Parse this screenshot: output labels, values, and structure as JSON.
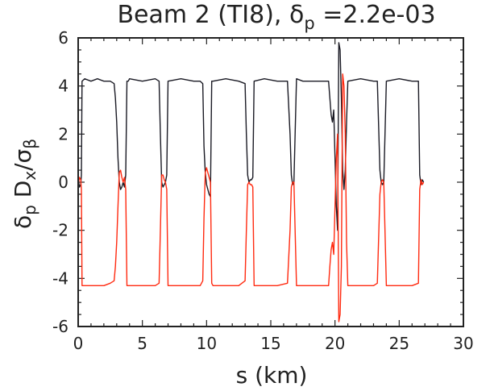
{
  "chart_data": {
    "type": "line",
    "title_main": "Beam 2 (TI8), δ",
    "title_sub": "p",
    "title_value": " =2.2e-03",
    "xlabel": "s (km)",
    "ylabel_parts": [
      "δ",
      "p",
      " D",
      "x",
      "/σ",
      "β"
    ],
    "xlim": [
      0,
      30
    ],
    "ylim": [
      -6,
      6
    ],
    "xticks": [
      0,
      5,
      10,
      15,
      20,
      25,
      30
    ],
    "yticks": [
      -6,
      -4,
      -2,
      0,
      2,
      4,
      6
    ],
    "grid": false,
    "colors": {
      "black_series": "#1a1a24",
      "red_series": "#ff2a10",
      "axis": "#222222"
    },
    "series": [
      {
        "color": "black",
        "segments": [
          {
            "x": [
              0.0,
              0.1,
              0.2,
              0.25,
              0.3,
              0.5,
              1.0,
              1.5,
              2.0,
              2.5,
              2.8,
              2.9,
              3.0,
              3.1,
              3.2,
              3.3,
              3.4,
              3.5,
              3.6,
              3.7,
              3.8,
              3.9,
              4.0,
              5.0,
              6.0,
              6.3,
              6.4,
              6.5,
              6.6,
              6.7,
              6.8,
              6.9,
              7.0,
              8.0,
              9.0,
              9.5,
              9.7,
              9.8,
              9.9,
              10.0,
              10.1,
              10.2,
              10.3,
              10.4,
              10.5,
              11.5,
              12.5,
              13.0,
              13.1,
              13.2,
              13.3,
              13.4,
              13.5,
              13.6,
              13.7,
              14.5,
              15.5,
              16.3,
              16.5,
              16.6,
              16.7,
              16.8,
              17.0,
              17.5,
              18.5,
              19.5,
              19.6,
              19.7,
              19.8,
              19.9,
              20.0,
              20.1,
              20.2,
              20.3,
              20.4,
              20.5,
              20.6,
              20.7,
              20.8,
              20.9,
              21.0,
              22.0,
              23.0,
              23.3,
              23.5,
              23.6,
              23.7,
              23.8,
              24.0,
              25.0,
              26.0,
              26.5,
              26.6,
              26.7,
              26.8,
              26.9
            ],
            "y": [
              0.1,
              -0.2,
              -0.1,
              0.3,
              4.2,
              4.3,
              4.2,
              4.3,
              4.2,
              4.2,
              4.1,
              3.5,
              2.5,
              1.0,
              0.0,
              -0.3,
              -0.2,
              0.0,
              -0.2,
              0.3,
              4.2,
              4.2,
              4.3,
              4.2,
              4.3,
              4.2,
              2.0,
              0.0,
              -0.2,
              -0.1,
              0.0,
              0.3,
              4.2,
              4.3,
              4.2,
              4.2,
              4.1,
              1.5,
              0.4,
              -0.1,
              -0.3,
              -0.5,
              -0.6,
              4.2,
              4.2,
              4.3,
              4.2,
              4.1,
              2.0,
              0.3,
              0.0,
              0.1,
              0.1,
              0.2,
              4.2,
              4.3,
              4.2,
              4.2,
              2.0,
              0.3,
              -0.1,
              0.0,
              4.3,
              4.2,
              4.2,
              4.2,
              3.5,
              2.8,
              2.5,
              3.0,
              1.0,
              -1.0,
              -2.0,
              5.8,
              5.5,
              3.5,
              0.5,
              -0.3,
              0.5,
              2.5,
              4.2,
              4.3,
              4.2,
              4.2,
              0.5,
              0.0,
              -0.1,
              0.0,
              4.2,
              4.3,
              4.2,
              4.2,
              0.3,
              -0.1,
              0.1,
              0.0
            ]
          }
        ]
      },
      {
        "color": "red",
        "segments": [
          {
            "x": [
              0.0,
              0.1,
              0.2,
              0.25,
              0.3,
              0.5,
              1.0,
              1.5,
              2.0,
              2.5,
              2.8,
              2.9,
              3.0,
              3.1,
              3.2,
              3.3,
              3.4,
              3.5,
              3.6,
              3.7,
              3.8,
              3.9,
              4.0,
              5.0,
              6.0,
              6.3,
              6.4,
              6.5,
              6.6,
              6.7,
              6.8,
              6.9,
              7.0,
              8.0,
              9.0,
              9.5,
              9.7,
              9.8,
              9.9,
              10.0,
              10.1,
              10.2,
              10.3,
              10.4,
              10.5,
              11.5,
              12.5,
              13.0,
              13.1,
              13.2,
              13.3,
              13.4,
              13.5,
              13.6,
              13.7,
              14.5,
              15.5,
              16.3,
              16.5,
              16.6,
              16.7,
              16.8,
              17.0,
              17.5,
              18.5,
              19.5,
              19.6,
              19.7,
              19.8,
              19.9,
              20.0,
              20.1,
              20.2,
              20.3,
              20.4,
              20.5,
              20.6,
              20.7,
              20.8,
              20.9,
              21.0,
              22.0,
              23.0,
              23.3,
              23.5,
              23.6,
              23.7,
              23.8,
              24.0,
              25.0,
              26.0,
              26.5,
              26.6,
              26.7,
              26.8,
              26.9
            ],
            "y": [
              -0.1,
              0.2,
              0.1,
              -0.3,
              -4.3,
              -4.3,
              -4.3,
              -4.3,
              -4.3,
              -4.2,
              -4.1,
              -3.5,
              -2.5,
              -1.0,
              0.4,
              0.5,
              0.2,
              0.0,
              0.2,
              -0.3,
              -4.3,
              -4.3,
              -4.3,
              -4.3,
              -4.3,
              -4.2,
              -2.0,
              0.3,
              0.3,
              0.1,
              0.0,
              -0.3,
              -4.3,
              -4.3,
              -4.3,
              -4.3,
              -4.1,
              -1.5,
              0.4,
              0.6,
              0.4,
              0.2,
              0.0,
              -4.2,
              -4.3,
              -4.3,
              -4.3,
              -4.1,
              -2.0,
              -0.1,
              0.0,
              -0.1,
              -0.1,
              -0.2,
              -4.3,
              -4.3,
              -4.3,
              -4.2,
              -2.0,
              -0.2,
              0.0,
              0.0,
              -4.3,
              -4.3,
              -4.3,
              -4.3,
              -3.5,
              -2.8,
              -2.5,
              -3.0,
              -1.0,
              1.0,
              2.0,
              -5.8,
              -5.5,
              -3.5,
              4.5,
              4.0,
              2.0,
              -2.5,
              -4.3,
              -4.3,
              -4.3,
              -4.2,
              -0.5,
              0.0,
              0.1,
              0.0,
              -4.3,
              -4.3,
              -4.3,
              -4.2,
              -0.3,
              0.1,
              -0.1,
              0.0
            ]
          }
        ]
      }
    ]
  }
}
